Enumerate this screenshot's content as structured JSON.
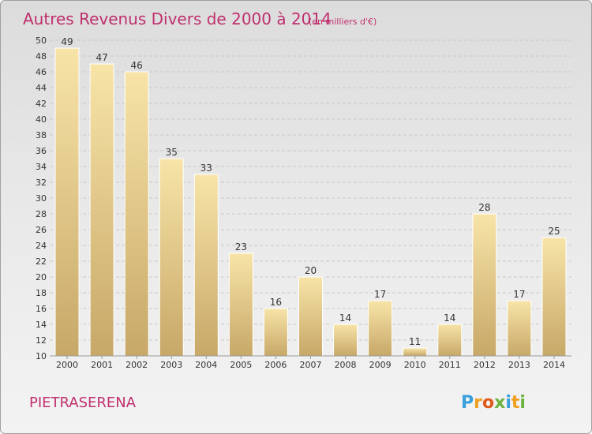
{
  "chart_data": {
    "type": "bar",
    "title": "Autres Revenus Divers de 2000 à 2014",
    "subtitle": "(en milliers d'€)",
    "categories": [
      "2000",
      "2001",
      "2002",
      "2003",
      "2004",
      "2005",
      "2006",
      "2007",
      "2008",
      "2009",
      "2010",
      "2011",
      "2012",
      "2013",
      "2014"
    ],
    "values": [
      49,
      47,
      46,
      35,
      33,
      23,
      16,
      20,
      14,
      17,
      11,
      14,
      28,
      17,
      25
    ],
    "ylim": [
      10,
      50
    ],
    "yticks": [
      10,
      12,
      14,
      16,
      18,
      20,
      22,
      24,
      26,
      28,
      30,
      32,
      34,
      36,
      38,
      40,
      42,
      44,
      46,
      48,
      50
    ],
    "grid": true,
    "colors": {
      "bar_light": "#f8e4a8",
      "bar_dark": "#c7a868",
      "title": "#c0306e"
    }
  },
  "commune": "PIETRASERENA",
  "brand": {
    "letters": [
      "P",
      "r",
      "o",
      "x",
      "i",
      "t",
      "i"
    ],
    "colors": [
      "#3aa0dc",
      "#f0a020",
      "#e05a1e",
      "#6cb33f",
      "#3aa0dc",
      "#f0a020",
      "#6cb33f"
    ]
  }
}
